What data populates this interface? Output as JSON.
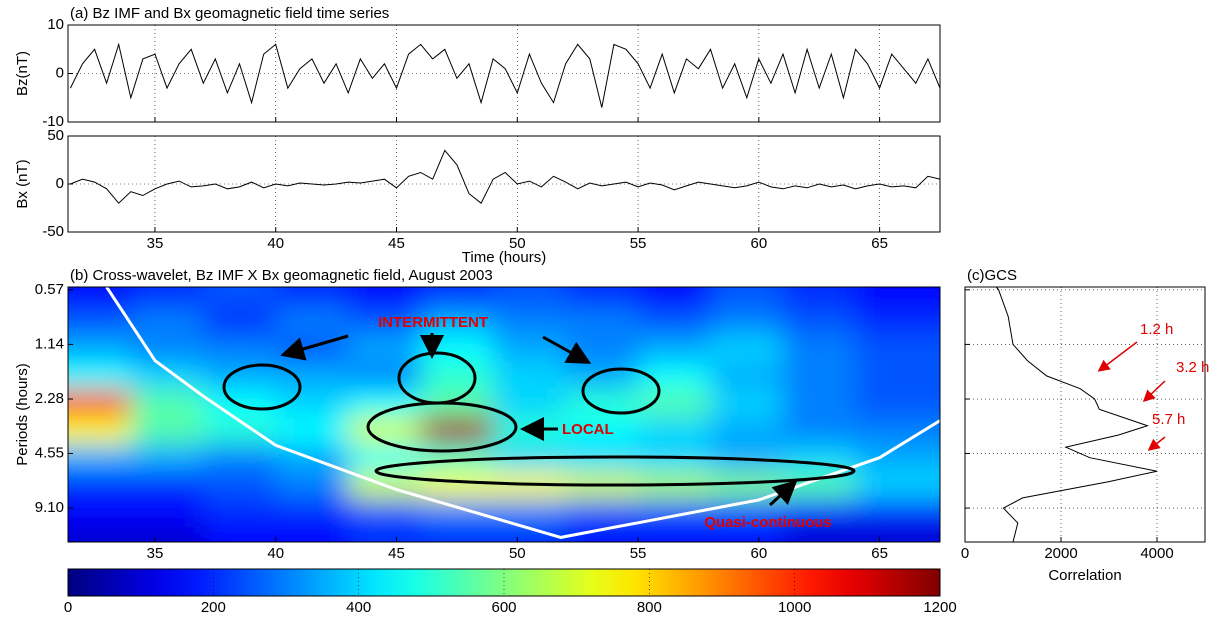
{
  "chart_data": [
    {
      "type": "line",
      "title": "(a) Bz IMF and Bx  geomagnetic field time series",
      "ylabel": "Bz(nT)",
      "color": "#000000",
      "xlim": [
        31.4,
        67.5
      ],
      "xticks": [
        35,
        40,
        45,
        50,
        55,
        60,
        65
      ],
      "xtick_labels": false,
      "ylim": [
        -10,
        10
      ],
      "yticks": [
        -10,
        0,
        10
      ],
      "grid": true,
      "x": [
        31.5,
        32,
        32.5,
        33,
        33.5,
        34,
        34.5,
        35,
        35.5,
        36,
        36.5,
        37,
        37.5,
        38,
        38.5,
        39,
        39.5,
        40,
        40.5,
        41,
        41.5,
        42,
        42.5,
        43,
        43.5,
        44,
        44.5,
        45,
        45.5,
        46,
        46.5,
        47,
        47.5,
        48,
        48.5,
        49,
        49.5,
        50,
        50.5,
        51,
        51.5,
        52,
        52.5,
        53,
        53.5,
        54,
        54.5,
        55,
        55.5,
        56,
        56.5,
        57,
        57.5,
        58,
        58.5,
        59,
        59.5,
        60,
        60.5,
        61,
        61.5,
        62,
        62.5,
        63,
        63.5,
        64,
        64.5,
        65,
        65.5,
        66,
        66.5,
        67,
        67.5
      ],
      "values": [
        -3,
        2,
        5,
        -2,
        6,
        -5,
        3,
        4,
        -3,
        2,
        5,
        -2,
        3,
        -4,
        2,
        -6,
        4,
        6,
        -3,
        1,
        3,
        -2,
        2,
        -4,
        3,
        -1,
        2,
        -3,
        4,
        6,
        3,
        5,
        -1,
        2,
        -6,
        3,
        1,
        -4,
        4,
        -2,
        -6,
        2,
        6,
        3,
        -7,
        6,
        5,
        2,
        -3,
        4,
        -4,
        3,
        1,
        5,
        -3,
        2,
        -5,
        3,
        -2,
        4,
        -4,
        5,
        -3,
        4,
        -5,
        5,
        2,
        -3,
        4,
        1,
        -2,
        3,
        -3
      ]
    },
    {
      "type": "line",
      "ylabel": "Bx (nT)",
      "xlabel": "Time (hours)",
      "color": "#000000",
      "xlim": [
        31.4,
        67.5
      ],
      "xticks": [
        35,
        40,
        45,
        50,
        55,
        60,
        65
      ],
      "ylim": [
        -50,
        50
      ],
      "yticks": [
        -50,
        0,
        50
      ],
      "grid": true,
      "x": [
        31.5,
        32,
        32.5,
        33,
        33.5,
        34,
        34.5,
        35,
        35.5,
        36,
        36.5,
        37,
        37.5,
        38,
        38.5,
        39,
        39.5,
        40,
        40.5,
        41,
        41.5,
        42,
        42.5,
        43,
        43.5,
        44,
        44.5,
        45,
        45.5,
        46,
        46.5,
        47,
        47.5,
        48,
        48.5,
        49,
        49.5,
        50,
        50.5,
        51,
        51.5,
        52,
        52.5,
        53,
        53.5,
        54,
        54.5,
        55,
        55.5,
        56,
        56.5,
        57,
        57.5,
        58,
        58.5,
        59,
        59.5,
        60,
        60.5,
        61,
        61.5,
        62,
        62.5,
        63,
        63.5,
        64,
        64.5,
        65,
        65.5,
        66,
        66.5,
        67,
        67.5
      ],
      "values": [
        0,
        5,
        2,
        -5,
        -20,
        -8,
        -12,
        -5,
        0,
        3,
        -3,
        -2,
        0,
        -5,
        -3,
        2,
        -4,
        0,
        -2,
        1,
        0,
        -1,
        0,
        2,
        1,
        3,
        5,
        -4,
        8,
        12,
        5,
        35,
        20,
        -10,
        -20,
        5,
        12,
        0,
        3,
        -3,
        8,
        2,
        -5,
        1,
        -2,
        0,
        2,
        -3,
        1,
        -1,
        -6,
        -2,
        2,
        0,
        -2,
        -4,
        -2,
        2,
        -3,
        -5,
        -2,
        -4,
        0,
        -3,
        -1,
        -5,
        -2,
        0,
        -3,
        -2,
        -4,
        8,
        5
      ]
    },
    {
      "type": "heatmap",
      "title": "(b) Cross-wavelet,  Bz IMF X Bx geomagnetic field, August 2003",
      "ylabel": "Periods (hours)",
      "colormap": "jet",
      "xlim": [
        31.4,
        67.5
      ],
      "xticks": [
        35,
        40,
        45,
        50,
        55,
        60,
        65
      ],
      "ylim": [
        0.55,
        14
      ],
      "ylog": true,
      "yreverse": true,
      "yticks": [
        0.57,
        1.14,
        2.28,
        4.55,
        {
          "value": 9.1,
          "label": "9.10"
        }
      ],
      "x": [
        32.5,
        35.5,
        38.5,
        41.5,
        44.5,
        47.5,
        50.5,
        53.5,
        56.5,
        59.5,
        62.5,
        65.5
      ],
      "y": [
        0.6,
        0.85,
        1.2,
        1.7,
        2.4,
        3.4,
        4.8,
        6.8,
        9.6,
        13
      ],
      "z": [
        [
          150,
          200,
          250,
          200,
          150,
          200,
          250,
          200,
          150,
          250,
          200,
          150
        ],
        [
          250,
          300,
          200,
          300,
          250,
          350,
          300,
          300,
          250,
          300,
          250,
          200
        ],
        [
          350,
          300,
          300,
          250,
          350,
          450,
          350,
          300,
          350,
          400,
          300,
          250
        ],
        [
          450,
          400,
          350,
          350,
          300,
          500,
          400,
          350,
          450,
          350,
          300,
          250
        ],
        [
          1000,
          550,
          450,
          400,
          450,
          550,
          400,
          500,
          550,
          400,
          300,
          250
        ],
        [
          750,
          550,
          500,
          450,
          700,
          1150,
          500,
          450,
          400,
          350,
          300,
          300
        ],
        [
          350,
          350,
          300,
          350,
          450,
          500,
          400,
          400,
          400,
          350,
          400,
          350
        ],
        [
          200,
          200,
          250,
          300,
          700,
          750,
          750,
          700,
          650,
          600,
          550,
          400
        ],
        [
          150,
          150,
          200,
          200,
          250,
          300,
          300,
          250,
          250,
          250,
          200,
          200
        ],
        [
          100,
          100,
          150,
          150,
          200,
          200,
          200,
          150,
          150,
          150,
          100,
          100
        ]
      ],
      "coi": {
        "color": "#ffffff",
        "x": [
          33,
          35,
          37,
          40,
          45,
          51.8,
          60,
          65,
          67.5
        ],
        "values": [
          0.55,
          1.4,
          2.2,
          4.1,
          7.2,
          13.2,
          8.2,
          4.8,
          3.0
        ]
      },
      "colorbar": {
        "lim": [
          0,
          1200
        ],
        "ticks": [
          0,
          200,
          400,
          600,
          800,
          1000,
          1200
        ]
      },
      "annotations": [
        {
          "text": "INTERMITTENT",
          "color": "#e00000"
        },
        {
          "text": "LOCAL",
          "color": "#e00000"
        },
        {
          "text": "Quasi-continuous",
          "color": "#e00000"
        }
      ]
    },
    {
      "type": "line",
      "orientation": "vertical",
      "title": "(c)GCS",
      "xlabel": "Correlation",
      "color": "#000000",
      "xlim": [
        0,
        5000
      ],
      "xticks": [
        0,
        2000,
        4000
      ],
      "ylim": [
        0.55,
        14
      ],
      "ylog": true,
      "yreverse": true,
      "yticks": [
        0.57,
        1.14,
        2.28,
        4.55,
        9.1
      ],
      "ytick_labels": false,
      "grid": true,
      "y": [
        0.55,
        0.57,
        0.8,
        1.14,
        1.4,
        1.7,
        2.0,
        2.28,
        2.6,
        3.2,
        3.6,
        4.2,
        4.8,
        5.7,
        6.5,
        8,
        9.1,
        11,
        14
      ],
      "values": [
        650,
        700,
        900,
        1000,
        1300,
        1700,
        2400,
        2700,
        2800,
        3800,
        3200,
        2100,
        2600,
        4000,
        3000,
        1200,
        800,
        1100,
        1000
      ],
      "annotations": [
        {
          "text": "1.2 h",
          "color": "#e00000"
        },
        {
          "text": "3.2 h",
          "color": "#e00000"
        },
        {
          "text": "5.7 h",
          "color": "#e00000"
        }
      ]
    }
  ]
}
